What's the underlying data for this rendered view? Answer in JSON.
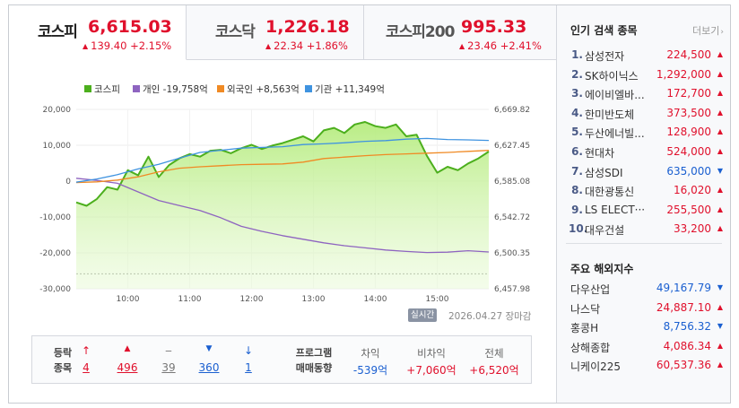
{
  "indices": [
    {
      "name": "코스피",
      "value": "6,615.03",
      "arrow": "▲",
      "change": "139.40",
      "pct": "+2.15%"
    },
    {
      "name": "코스닥",
      "value": "1,226.18",
      "arrow": "▲",
      "change": "22.34",
      "pct": "+1.86%"
    },
    {
      "name": "코스피200",
      "value": "995.33",
      "arrow": "▲",
      "change": "23.46",
      "pct": "+2.41%"
    }
  ],
  "legend": {
    "kospi": "코스피",
    "individual": "개인 -19,758억",
    "foreign": "외국인 +8,563억",
    "institution": "기관 +11,349억"
  },
  "chart_data": {
    "type": "line",
    "title": "",
    "x_ticks": [
      "10:00",
      "11:00",
      "12:00",
      "13:00",
      "14:00",
      "15:00"
    ],
    "left_y_ticks": [
      "20,000",
      "10,000",
      "0",
      "-10,000",
      "-20,000",
      "-30,000"
    ],
    "right_y_ticks": [
      "6,669.82",
      "6,627.45",
      "6,585.08",
      "6,542.72",
      "6,500.35",
      "6,457.98"
    ],
    "left_ylim": [
      -30000,
      20000
    ],
    "right_ylim": [
      6457.98,
      6669.82
    ],
    "prev_close": 6475.63,
    "x_range_minutes": [
      0,
      400
    ],
    "series": [
      {
        "name": "코스피",
        "axis": "right",
        "color": "#4caf1d",
        "x": [
          0,
          10,
          20,
          30,
          40,
          50,
          60,
          70,
          80,
          90,
          100,
          110,
          120,
          130,
          140,
          150,
          160,
          170,
          180,
          190,
          200,
          210,
          220,
          230,
          240,
          250,
          260,
          270,
          280,
          290,
          300,
          310,
          320,
          330,
          340,
          350,
          360,
          370,
          380,
          390,
          400
        ],
        "y": [
          6560,
          6556,
          6564,
          6578,
          6575,
          6598,
          6592,
          6614,
          6590,
          6604,
          6612,
          6617,
          6614,
          6621,
          6622,
          6618,
          6624,
          6628,
          6623,
          6627,
          6630,
          6634,
          6638,
          6632,
          6645,
          6648,
          6642,
          6652,
          6655,
          6650,
          6648,
          6652,
          6638,
          6640,
          6615,
          6595,
          6602,
          6598,
          6606,
          6612,
          6620
        ]
      },
      {
        "name": "개인",
        "axis": "left",
        "color": "#8e64c0",
        "x": [
          0,
          20,
          40,
          60,
          80,
          100,
          120,
          140,
          160,
          180,
          200,
          220,
          240,
          260,
          280,
          300,
          320,
          340,
          360,
          380,
          400
        ],
        "y": [
          800,
          200,
          -600,
          -3000,
          -5400,
          -6800,
          -8200,
          -10200,
          -12600,
          -14000,
          -15200,
          -16200,
          -17200,
          -18000,
          -18600,
          -19200,
          -19600,
          -19900,
          -19800,
          -19400,
          -19758
        ]
      },
      {
        "name": "외국인",
        "axis": "left",
        "color": "#f08a24",
        "x": [
          0,
          20,
          40,
          60,
          80,
          100,
          120,
          140,
          160,
          180,
          200,
          220,
          240,
          260,
          280,
          300,
          320,
          340,
          360,
          380,
          400
        ],
        "y": [
          -400,
          -200,
          300,
          1200,
          2600,
          3600,
          4000,
          4300,
          4600,
          4700,
          4800,
          5300,
          6300,
          6700,
          7100,
          7400,
          7600,
          7800,
          8000,
          8300,
          8563
        ]
      },
      {
        "name": "기관",
        "axis": "left",
        "color": "#3f93e0",
        "x": [
          0,
          20,
          40,
          60,
          80,
          100,
          120,
          140,
          160,
          180,
          200,
          220,
          240,
          260,
          280,
          300,
          320,
          340,
          360,
          380,
          400
        ],
        "y": [
          -300,
          600,
          1800,
          3400,
          4700,
          6400,
          8000,
          8600,
          9200,
          9400,
          9600,
          10200,
          10400,
          10700,
          11100,
          11300,
          11700,
          11900,
          11600,
          11500,
          11349
        ]
      }
    ]
  },
  "timestamp": {
    "badge": "실시간",
    "date": "2026.04.27",
    "status": "장마감"
  },
  "stats": {
    "label": "등락\n종목",
    "items": [
      {
        "icon": "↑",
        "value": "4",
        "cls": "up"
      },
      {
        "icon": "▲",
        "value": "496",
        "cls": "up"
      },
      {
        "icon": "‒",
        "value": "39",
        "cls": "flat"
      },
      {
        "icon": "▼",
        "value": "360",
        "cls": "down"
      },
      {
        "icon": "↓",
        "value": "1",
        "cls": "down"
      }
    ],
    "program_label": "프로그램\n매매동향",
    "program": [
      {
        "head": "차익",
        "value": "-539억",
        "cls": "down"
      },
      {
        "head": "비차익",
        "value": "+7,060억",
        "cls": "up"
      },
      {
        "head": "전체",
        "value": "+6,520억",
        "cls": "up"
      }
    ]
  },
  "popular": {
    "title": "인기 검색 종목",
    "more": "더보기",
    "items": [
      {
        "rank": "1.",
        "name": "삼성전자",
        "price": "224,500",
        "dir": "up"
      },
      {
        "rank": "2.",
        "name": "SK하이닉스",
        "price": "1,292,000",
        "dir": "up"
      },
      {
        "rank": "3.",
        "name": "에이비엘바...",
        "price": "172,700",
        "dir": "up"
      },
      {
        "rank": "4.",
        "name": "한미반도체",
        "price": "373,500",
        "dir": "up"
      },
      {
        "rank": "5.",
        "name": "두산에너빌...",
        "price": "128,900",
        "dir": "up"
      },
      {
        "rank": "6.",
        "name": "현대차",
        "price": "524,000",
        "dir": "up"
      },
      {
        "rank": "7.",
        "name": "삼성SDI",
        "price": "635,000",
        "dir": "down"
      },
      {
        "rank": "8.",
        "name": "대한광통신",
        "price": "16,020",
        "dir": "up"
      },
      {
        "rank": "9.",
        "name": "LS ELECT···",
        "price": "255,500",
        "dir": "up"
      },
      {
        "rank": "10.",
        "name": "대우건설",
        "price": "33,200",
        "dir": "up"
      }
    ]
  },
  "overseas": {
    "title": "주요 해외지수",
    "items": [
      {
        "name": "다우산업",
        "value": "49,167.79",
        "dir": "down"
      },
      {
        "name": "나스닥",
        "value": "24,887.10",
        "dir": "up"
      },
      {
        "name": "홍콩H",
        "value": "8,756.32",
        "dir": "down"
      },
      {
        "name": "상해종합",
        "value": "4,086.34",
        "dir": "up"
      },
      {
        "name": "니케이225",
        "value": "60,537.36",
        "dir": "up"
      }
    ]
  },
  "colors": {
    "up": "#e0102c",
    "down": "#1a5fd0",
    "kospi_fill": "#b6ec7f"
  }
}
